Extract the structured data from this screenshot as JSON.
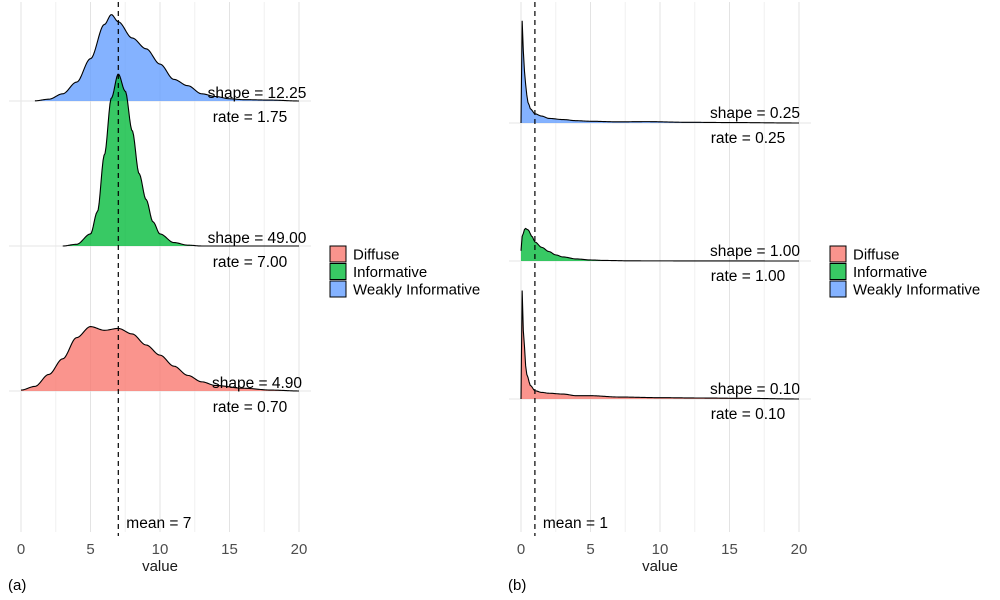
{
  "chart_data": [
    {
      "panel_label": "(a)",
      "type": "area",
      "subtype": "ridgeline density",
      "xlabel": "value",
      "xlim": [
        0,
        20
      ],
      "xticks": [
        0,
        5,
        10,
        15,
        20
      ],
      "mean_line": {
        "value": 7,
        "label": "mean = 7",
        "style": "dashed"
      },
      "grid": "vertical lines at every 2.5 units, light gray",
      "legend": {
        "position": "right",
        "entries": [
          {
            "name": "Diffuse",
            "color": "#F8766D"
          },
          {
            "name": "Informative",
            "color": "#00BA38"
          },
          {
            "name": "Weakly Informative",
            "color": "#619CFF"
          }
        ]
      },
      "series": [
        {
          "name": "Weakly Informative",
          "color": "#619CFF",
          "shape_label": "shape = 12.25",
          "rate_label": "rate = 1.75",
          "x": [
            1,
            2,
            3,
            4,
            5,
            6,
            6.5,
            7,
            8,
            9,
            10,
            11,
            12,
            13,
            14,
            15,
            16,
            18,
            20
          ],
          "density": [
            0.002,
            0.02,
            0.08,
            0.21,
            0.47,
            0.85,
            0.96,
            0.88,
            0.7,
            0.58,
            0.41,
            0.24,
            0.17,
            0.08,
            0.05,
            0.025,
            0.015,
            0.01,
            0.0
          ]
        },
        {
          "name": "Informative",
          "color": "#00BA38",
          "shape_label": "shape = 49.00",
          "rate_label": "rate = 7.00",
          "x": [
            3,
            4,
            5,
            5.5,
            6,
            6.5,
            7,
            7.5,
            8,
            8.5,
            9,
            9.5,
            10,
            11,
            12,
            13,
            20
          ],
          "density": [
            0.0,
            0.01,
            0.07,
            0.2,
            0.53,
            0.86,
            1.0,
            0.9,
            0.67,
            0.42,
            0.27,
            0.14,
            0.07,
            0.02,
            0.005,
            0.0,
            0.0
          ]
        },
        {
          "name": "Diffuse",
          "color": "#F8766D",
          "shape_label": "shape = 4.90",
          "rate_label": "rate = 0.70",
          "x": [
            0,
            1,
            2,
            3,
            4,
            5,
            6,
            7,
            8,
            9,
            10,
            11,
            12,
            13,
            14,
            16,
            18,
            20
          ],
          "density": [
            0.01,
            0.05,
            0.18,
            0.35,
            0.58,
            0.7,
            0.66,
            0.68,
            0.62,
            0.5,
            0.39,
            0.27,
            0.17,
            0.1,
            0.06,
            0.03,
            0.01,
            0.0
          ]
        }
      ]
    },
    {
      "panel_label": "(b)",
      "type": "area",
      "subtype": "ridgeline density",
      "xlabel": "value",
      "xlim": [
        0,
        20
      ],
      "xticks": [
        0,
        5,
        10,
        15,
        20
      ],
      "mean_line": {
        "value": 1,
        "label": "mean = 1",
        "style": "dashed"
      },
      "grid": "vertical lines at every 2.5 units, light gray",
      "legend": {
        "position": "right",
        "entries": [
          {
            "name": "Diffuse",
            "color": "#F8766D"
          },
          {
            "name": "Informative",
            "color": "#00BA38"
          },
          {
            "name": "Weakly Informative",
            "color": "#619CFF"
          }
        ]
      },
      "series": [
        {
          "name": "Weakly Informative",
          "color": "#619CFF",
          "shape_label": "shape = 0.25",
          "rate_label": "rate = 0.25",
          "x": [
            0,
            0.05,
            0.1,
            0.2,
            0.3,
            0.5,
            0.7,
            1,
            1.5,
            2,
            3,
            4,
            5,
            7,
            9,
            12,
            15,
            20
          ],
          "density": [
            0.0,
            1.0,
            0.85,
            0.55,
            0.35,
            0.18,
            0.12,
            0.08,
            0.06,
            0.04,
            0.03,
            0.02,
            0.015,
            0.01,
            0.012,
            0.006,
            0.004,
            0.0
          ]
        },
        {
          "name": "Informative",
          "color": "#00BA38",
          "shape_label": "shape = 1.00",
          "rate_label": "rate = 1.00",
          "x": [
            0,
            0.1,
            0.3,
            0.5,
            0.8,
            1,
            1.5,
            2,
            2.5,
            3,
            4,
            5,
            6,
            8,
            20
          ],
          "density": [
            0.15,
            0.38,
            0.48,
            0.46,
            0.36,
            0.28,
            0.2,
            0.14,
            0.09,
            0.06,
            0.03,
            0.015,
            0.008,
            0.002,
            0.0
          ]
        },
        {
          "name": "Diffuse",
          "color": "#F8766D",
          "shape_label": "shape = 0.10",
          "rate_label": "rate = 0.10",
          "x": [
            0,
            0.03,
            0.1,
            0.2,
            0.4,
            0.7,
            1,
            1.5,
            2,
            3,
            4,
            5,
            7,
            10,
            13,
            16,
            20
          ],
          "density": [
            0.0,
            1.0,
            0.6,
            0.35,
            0.15,
            0.08,
            0.05,
            0.04,
            0.035,
            0.03,
            0.02,
            0.02,
            0.012,
            0.008,
            0.006,
            0.004,
            0.0
          ]
        }
      ]
    }
  ]
}
